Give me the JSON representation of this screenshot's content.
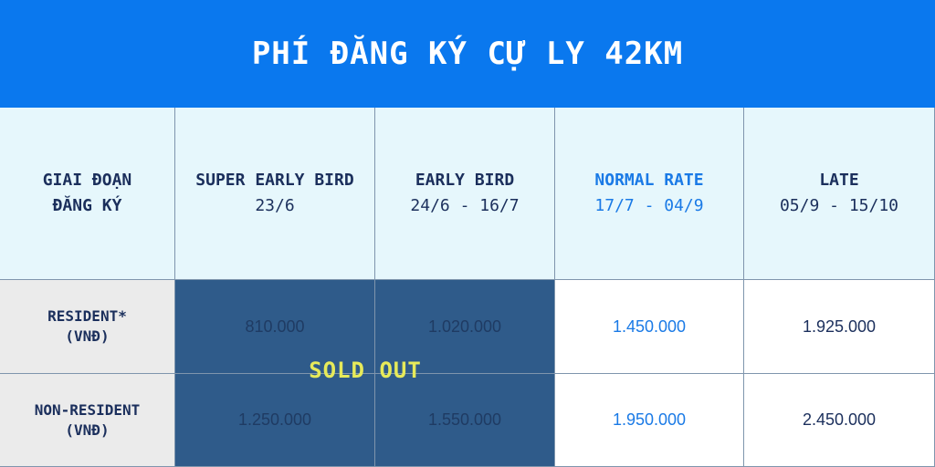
{
  "header": {
    "title": "PHÍ ĐĂNG KÝ CỰ LY 42KM"
  },
  "table": {
    "corner": [
      "GIAI ĐOẠN",
      "ĐĂNG KÝ"
    ],
    "columns": [
      {
        "name": "SUPER EARLY BIRD",
        "dates": "23/6"
      },
      {
        "name": "EARLY BIRD",
        "dates": "24/6 - 16/7"
      },
      {
        "name": "NORMAL RATE",
        "dates": "17/7 - 04/9"
      },
      {
        "name": "LATE",
        "dates": "05/9 - 15/10"
      }
    ],
    "rows": [
      {
        "label": [
          "RESIDENT*",
          "(VNĐ)"
        ],
        "prices": [
          "810.000",
          "1.020.000",
          "1.450.000",
          "1.925.000"
        ]
      },
      {
        "label": [
          "NON-RESIDENT",
          "(VNĐ)"
        ],
        "prices": [
          "1.250.000",
          "1.550.000",
          "1.950.000",
          "2.450.000"
        ]
      }
    ],
    "overlay": "SOLD OUT"
  }
}
